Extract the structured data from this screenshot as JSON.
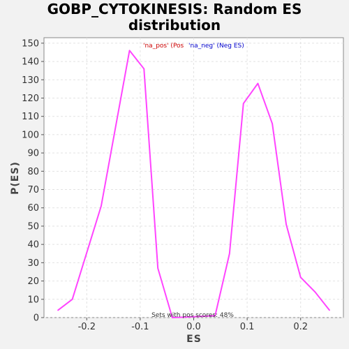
{
  "chart_data": {
    "type": "line",
    "title_lines": [
      "GOBP_CYTOKINESIS: Random ES",
      "distribution"
    ],
    "xlabel": "ES",
    "ylabel": "P(ES)",
    "xlim": [
      -0.28,
      0.28
    ],
    "ylim": [
      0,
      153
    ],
    "x_ticks": [
      -0.2,
      -0.1,
      0.0,
      0.1,
      0.2
    ],
    "x_tick_labels": [
      "-0.2",
      "-0.1",
      "0.0",
      "0.1",
      "0.2"
    ],
    "y_ticks": [
      0,
      10,
      20,
      30,
      40,
      50,
      60,
      70,
      80,
      90,
      100,
      110,
      120,
      130,
      140,
      150
    ],
    "grid": true,
    "legend_position": "top-center",
    "legend": [
      {
        "label": "'na_pos' (Pos",
        "color": "#cc0000"
      },
      {
        "label": "'na_neg' (Neg ES)",
        "color": "#0000cc"
      }
    ],
    "annotation": "Sets with pos scores: 48%",
    "series": [
      {
        "color": "#ff44ff",
        "points": [
          [
            -0.254,
            4
          ],
          [
            -0.227,
            10
          ],
          [
            -0.173,
            61
          ],
          [
            -0.12,
            146
          ],
          [
            -0.093,
            136
          ],
          [
            -0.067,
            27
          ],
          [
            -0.04,
            0
          ],
          [
            0.04,
            1
          ],
          [
            0.067,
            35
          ],
          [
            0.093,
            117
          ],
          [
            0.12,
            128
          ],
          [
            0.147,
            106
          ],
          [
            0.173,
            51
          ],
          [
            0.2,
            22
          ],
          [
            0.227,
            14
          ],
          [
            0.254,
            4
          ]
        ]
      }
    ]
  }
}
